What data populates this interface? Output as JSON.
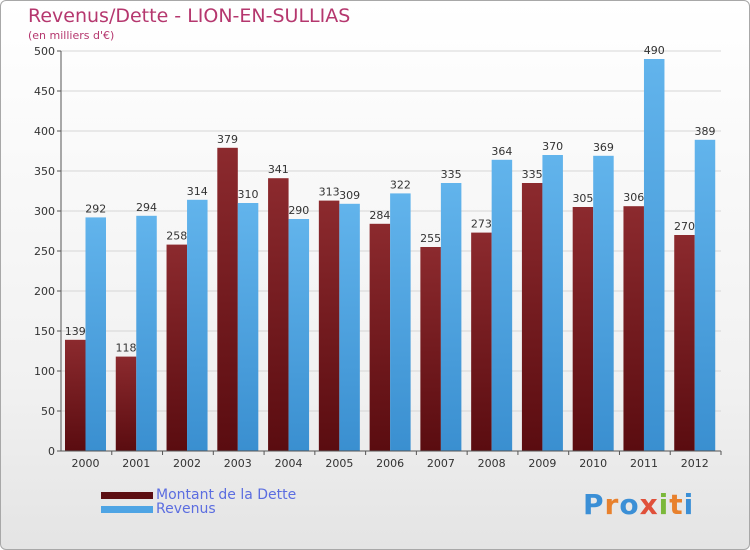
{
  "title": "Revenus/Dette - LION-EN-SULLIAS",
  "subtitle": "(en milliers d'€)",
  "colors": {
    "dette": "#7d1e22",
    "dette_dark": "#4a0c0f",
    "revenus": "#5aaee8",
    "revenus_dark": "#2f7fc0",
    "title": "#b5376e",
    "legend_text": "#5b6de0"
  },
  "legend": [
    {
      "label": "Montant de la Dette",
      "color": "#5c0f12"
    },
    {
      "label": "Revenus",
      "color": "#4ea4e4"
    }
  ],
  "logo": {
    "text": "Proxiti",
    "icon": "proxiti-logo"
  },
  "chart_data": {
    "type": "bar",
    "categories": [
      "2000",
      "2001",
      "2002",
      "2003",
      "2004",
      "2005",
      "2006",
      "2007",
      "2008",
      "2009",
      "2010",
      "2011",
      "2012"
    ],
    "series": [
      {
        "name": "Montant de la Dette",
        "values": [
          139,
          118,
          258,
          379,
          341,
          313,
          284,
          255,
          273,
          335,
          305,
          306,
          270
        ]
      },
      {
        "name": "Revenus",
        "values": [
          292,
          294,
          314,
          310,
          290,
          309,
          322,
          335,
          364,
          370,
          369,
          490,
          389
        ]
      }
    ],
    "ylim": [
      0,
      500
    ],
    "yticks": [
      0,
      50,
      100,
      150,
      200,
      250,
      300,
      350,
      400,
      450,
      500
    ],
    "grid": true,
    "legend_position": "bottom-left"
  }
}
